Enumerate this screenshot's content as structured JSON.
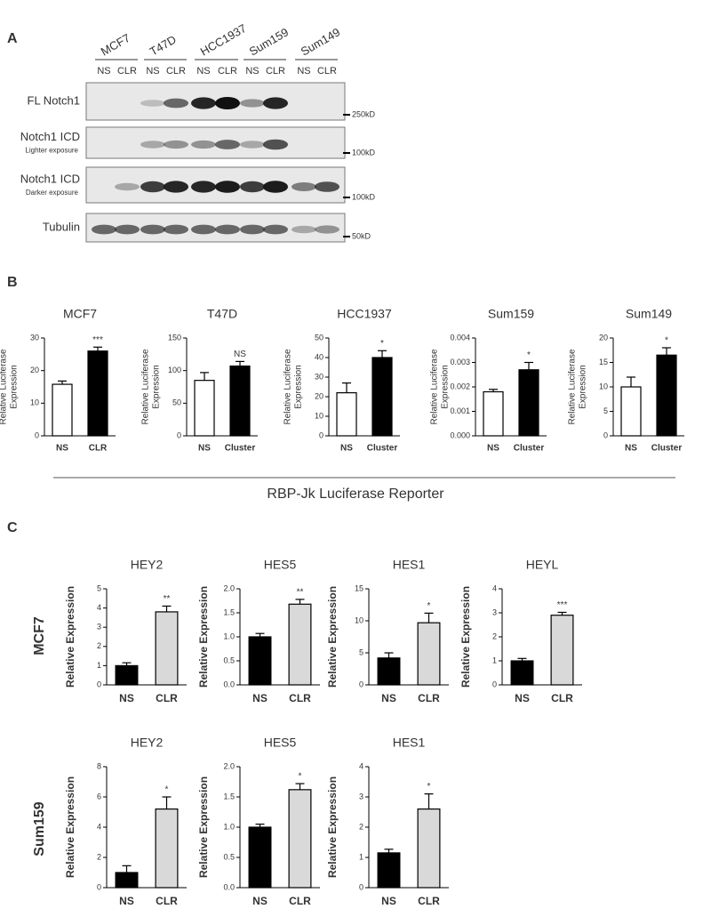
{
  "panel_a": {
    "label": "A",
    "cell_lines": [
      "MCF7",
      "T47D",
      "HCC1937",
      "Sum159",
      "Sum149"
    ],
    "lanes": [
      "NS",
      "CLR",
      "NS",
      "CLR",
      "NS",
      "CLR",
      "NS",
      "CLR",
      "NS",
      "CLR"
    ],
    "rows": [
      {
        "label": "FL Notch1",
        "marker": "250kD"
      },
      {
        "label": "Notch1 ICD",
        "sublabel": "Lighter exposure",
        "marker": "100kD"
      },
      {
        "label": "Notch1 ICD",
        "sublabel": "Darker exposure",
        "marker": "100kD"
      },
      {
        "label": "Tubulin",
        "marker": "50kD"
      }
    ]
  },
  "panel_b": {
    "label": "B",
    "caption": "RBP-Jk Luciferase Reporter"
  },
  "panel_c": {
    "label": "C",
    "rows": [
      "MCF7",
      "Sum159"
    ]
  },
  "chart_data": [
    {
      "type": "bar",
      "title": "MCF7",
      "ylabel": [
        "Relative Luciferase",
        "Expression"
      ],
      "categories": [
        "NS",
        "CLR"
      ],
      "values": [
        15.8,
        26
      ],
      "errors": [
        1,
        1.2
      ],
      "annotation": "***",
      "colors": [
        "#ffffff",
        "#000000"
      ],
      "ylim": [
        0,
        30
      ],
      "yticks": [
        0,
        10,
        20,
        30
      ]
    },
    {
      "type": "bar",
      "title": "T47D",
      "ylabel": [
        "Relative Luciferase",
        "Expression"
      ],
      "categories": [
        "NS",
        "Cluster"
      ],
      "values": [
        85,
        107
      ],
      "errors": [
        12,
        7
      ],
      "annotation": "NS",
      "colors": [
        "#ffffff",
        "#000000"
      ],
      "ylim": [
        0,
        150
      ],
      "yticks": [
        0,
        50,
        100,
        150
      ]
    },
    {
      "type": "bar",
      "title": "HCC1937",
      "ylabel": [
        "Relative Luciferase",
        "Expression"
      ],
      "categories": [
        "NS",
        "Cluster"
      ],
      "values": [
        22,
        40
      ],
      "errors": [
        5,
        3.5
      ],
      "annotation": "*",
      "colors": [
        "#ffffff",
        "#000000"
      ],
      "ylim": [
        0,
        50
      ],
      "yticks": [
        0,
        10,
        20,
        30,
        40,
        50
      ]
    },
    {
      "type": "bar",
      "title": "Sum159",
      "ylabel": [
        "Relative Luciferase",
        "Expression"
      ],
      "categories": [
        "NS",
        "Cluster"
      ],
      "values": [
        0.0018,
        0.0027
      ],
      "errors": [
        0.0001,
        0.0003
      ],
      "annotation": "*",
      "colors": [
        "#ffffff",
        "#000000"
      ],
      "ylim": [
        0,
        0.004
      ],
      "yticks": [
        {
          "value": 0,
          "label": "0.000"
        },
        {
          "value": 0.001,
          "label": "0.001"
        },
        {
          "value": 0.002,
          "label": "0.002"
        },
        {
          "value": 0.003,
          "label": "0.003"
        },
        {
          "value": 0.004,
          "label": "0.004"
        }
      ]
    },
    {
      "type": "bar",
      "title": "Sum149",
      "ylabel": [
        "Relative Luciferase",
        "Expression"
      ],
      "categories": [
        "NS",
        "Cluster"
      ],
      "values": [
        10,
        16.5
      ],
      "errors": [
        2,
        1.5
      ],
      "annotation": "*",
      "colors": [
        "#ffffff",
        "#000000"
      ],
      "ylim": [
        0,
        20
      ],
      "yticks": [
        0,
        5,
        10,
        15,
        20
      ]
    },
    {
      "type": "bar",
      "title": "HEY2",
      "ylabel": [
        "Relative Expression"
      ],
      "categories": [
        "NS",
        "CLR"
      ],
      "values": [
        1,
        3.8
      ],
      "errors": [
        0.15,
        0.3
      ],
      "annotation": "**",
      "colors": [
        "#000000",
        "#d9d9d9"
      ],
      "ylim": [
        0,
        5
      ],
      "yticks": [
        0,
        1,
        2,
        3,
        4,
        5
      ]
    },
    {
      "type": "bar",
      "title": "HES5",
      "ylabel": [
        "Relative Expression"
      ],
      "categories": [
        "NS",
        "CLR"
      ],
      "values": [
        1.0,
        1.68
      ],
      "errors": [
        0.07,
        0.1
      ],
      "annotation": "**",
      "colors": [
        "#000000",
        "#d9d9d9"
      ],
      "ylim": [
        0,
        2
      ],
      "yticks": [
        {
          "value": 0,
          "label": "0.0"
        },
        0.5,
        {
          "value": 1,
          "label": "1.0"
        },
        1.5,
        {
          "value": 2,
          "label": "2.0"
        }
      ]
    },
    {
      "type": "bar",
      "title": "HES1",
      "ylabel": [
        "Relative Expression"
      ],
      "categories": [
        "NS",
        "CLR"
      ],
      "values": [
        4.2,
        9.7
      ],
      "errors": [
        0.8,
        1.5
      ],
      "annotation": "*",
      "colors": [
        "#000000",
        "#d9d9d9"
      ],
      "ylim": [
        0,
        15
      ],
      "yticks": [
        0,
        5,
        10,
        15
      ]
    },
    {
      "type": "bar",
      "title": "HEYL",
      "ylabel": [
        "Relative Expression"
      ],
      "categories": [
        "NS",
        "CLR"
      ],
      "values": [
        1,
        2.9
      ],
      "errors": [
        0.1,
        0.12
      ],
      "annotation": "***",
      "colors": [
        "#000000",
        "#d9d9d9"
      ],
      "ylim": [
        0,
        4
      ],
      "yticks": [
        0,
        1,
        2,
        3,
        4
      ]
    },
    {
      "type": "bar",
      "title": "HEY2",
      "ylabel": [
        "Relative Expression"
      ],
      "categories": [
        "NS",
        "CLR"
      ],
      "values": [
        1,
        5.2
      ],
      "errors": [
        0.45,
        0.8
      ],
      "annotation": "*",
      "colors": [
        "#000000",
        "#d9d9d9"
      ],
      "ylim": [
        0,
        8
      ],
      "yticks": [
        0,
        2,
        4,
        6,
        8
      ]
    },
    {
      "type": "bar",
      "title": "HES5",
      "ylabel": [
        "Relative Expression"
      ],
      "categories": [
        "NS",
        "CLR"
      ],
      "values": [
        1.0,
        1.62
      ],
      "errors": [
        0.05,
        0.1
      ],
      "annotation": "*",
      "colors": [
        "#000000",
        "#d9d9d9"
      ],
      "ylim": [
        0,
        2
      ],
      "yticks": [
        {
          "value": 0,
          "label": "0.0"
        },
        0.5,
        {
          "value": 1,
          "label": "1.0"
        },
        1.5,
        {
          "value": 2,
          "label": "2.0"
        }
      ]
    },
    {
      "type": "bar",
      "title": "HES1",
      "ylabel": [
        "Relative Expression"
      ],
      "categories": [
        "NS",
        "CLR"
      ],
      "values": [
        1.15,
        2.6
      ],
      "errors": [
        0.12,
        0.5
      ],
      "annotation": "*",
      "colors": [
        "#000000",
        "#d9d9d9"
      ],
      "ylim": [
        0,
        4
      ],
      "yticks": [
        0,
        1,
        2,
        3,
        4
      ]
    }
  ]
}
